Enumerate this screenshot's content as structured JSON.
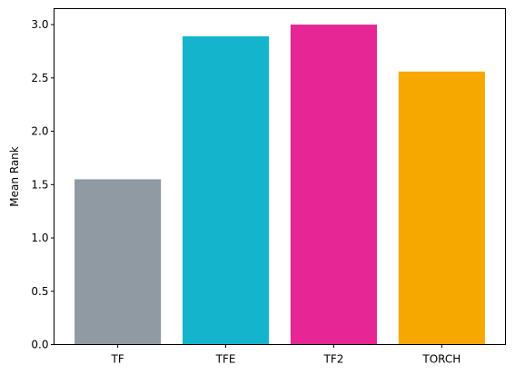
{
  "chart_data": {
    "type": "bar",
    "title": "",
    "xlabel": "",
    "ylabel": "Mean Rank",
    "categories": [
      "TF",
      "TFE",
      "TF2",
      "TORCH"
    ],
    "values": [
      1.55,
      2.89,
      3.0,
      2.56
    ],
    "colors": [
      "#8f9aa3",
      "#14b5cc",
      "#e52694",
      "#f7a800"
    ],
    "ylim": [
      0,
      3.15
    ],
    "yticks": [
      "0.0",
      "0.5",
      "1.0",
      "1.5",
      "2.0",
      "2.5",
      "3.0"
    ],
    "ytick_values": [
      0,
      0.5,
      1.0,
      1.5,
      2.0,
      2.5,
      3.0
    ],
    "grid": false,
    "legend": "none"
  }
}
